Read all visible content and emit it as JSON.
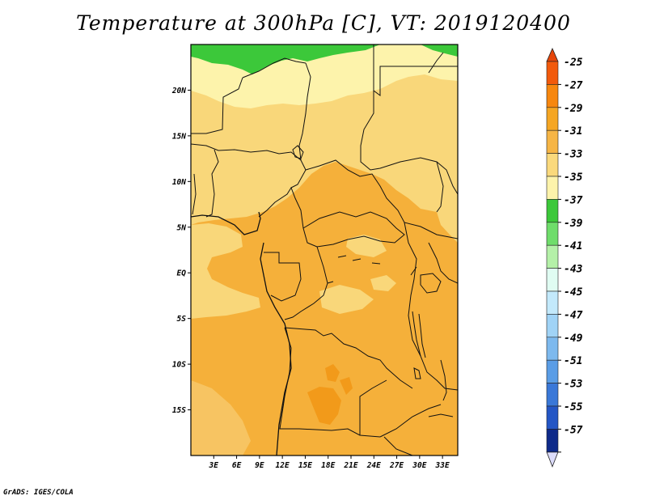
{
  "title": "Temperature at 300hPa [C], VT: 2019120400",
  "credit": "GrADS: IGES/COLA",
  "map": {
    "lat_labels": [
      {
        "label": "20N",
        "lat": 20
      },
      {
        "label": "15N",
        "lat": 15
      },
      {
        "label": "10N",
        "lat": 10
      },
      {
        "label": "5N",
        "lat": 5
      },
      {
        "label": "EQ",
        "lat": 0
      },
      {
        "label": "5S",
        "lat": -5
      },
      {
        "label": "10S",
        "lat": -10
      },
      {
        "label": "15S",
        "lat": -15
      }
    ],
    "lon_labels": [
      {
        "label": "3E",
        "lon": 3
      },
      {
        "label": "6E",
        "lon": 6
      },
      {
        "label": "9E",
        "lon": 9
      },
      {
        "label": "12E",
        "lon": 12
      },
      {
        "label": "15E",
        "lon": 15
      },
      {
        "label": "18E",
        "lon": 18
      },
      {
        "label": "21E",
        "lon": 21
      },
      {
        "label": "24E",
        "lon": 24
      },
      {
        "label": "27E",
        "lon": 27
      },
      {
        "label": "30E",
        "lon": 30
      },
      {
        "label": "33E",
        "lon": 33
      }
    ],
    "lon_range": [
      0,
      35
    ],
    "lat_range": [
      -20,
      25
    ]
  },
  "colorbar": {
    "levels": [
      {
        "label": "-25",
        "color": "#f25a0c"
      },
      {
        "label": "-27",
        "color": "#f7870f"
      },
      {
        "label": "-29",
        "color": "#f5a623"
      },
      {
        "label": "-31",
        "color": "#f6b545"
      },
      {
        "label": "-33",
        "color": "#fad97c"
      },
      {
        "label": "-35",
        "color": "#fdf3ab"
      },
      {
        "label": "-37",
        "color": "#3cc83a"
      },
      {
        "label": "-39",
        "color": "#6fdd6b"
      },
      {
        "label": "-41",
        "color": "#b4f0a8"
      },
      {
        "label": "-43",
        "color": "#e0fcf2"
      },
      {
        "label": "-45",
        "color": "#c3e9fb"
      },
      {
        "label": "-47",
        "color": "#a0d3f6"
      },
      {
        "label": "-49",
        "color": "#7db9ee"
      },
      {
        "label": "-51",
        "color": "#5a9de6"
      },
      {
        "label": "-53",
        "color": "#3a78d8"
      },
      {
        "label": "-55",
        "color": "#2456c5"
      },
      {
        "label": "-57",
        "color": "#0e2a8a"
      }
    ],
    "top_color": "#e6460a",
    "bottom_color": "#dcdcfa"
  },
  "colors": {
    "field_orange": "#f5b03a",
    "field_dark_orange": "#f29a1a",
    "field_yellow": "#f9d77a",
    "field_pale": "#fdf3ab",
    "field_green": "#3cc83a"
  }
}
